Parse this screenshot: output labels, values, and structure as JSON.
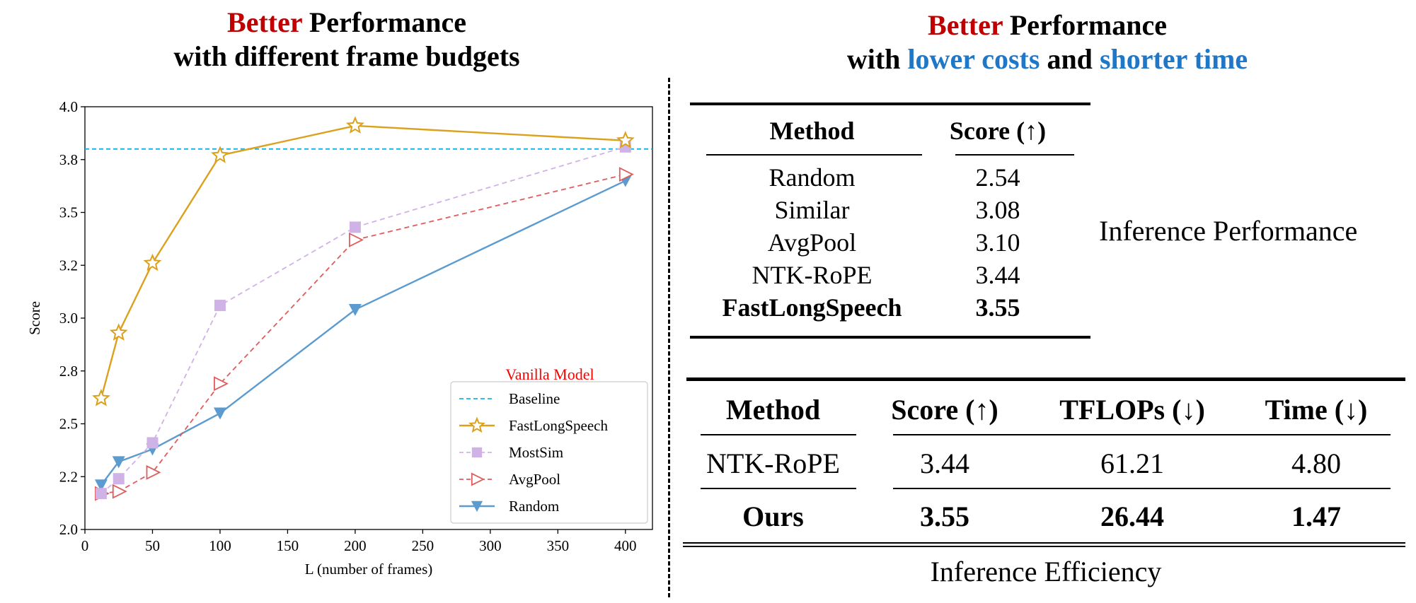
{
  "left_panel": {
    "heading_red": "Better",
    "heading_rest": " Performance",
    "heading_line2": "with different frame budgets"
  },
  "right_panel": {
    "heading_red": "Better",
    "heading_rest": " Performance",
    "heading_line2_pre": "with ",
    "heading_line2_blue1": "lower costs",
    "heading_line2_mid": " and ",
    "heading_line2_blue2": "shorter time"
  },
  "chart_data": {
    "type": "line",
    "xlabel": "L (number of frames)",
    "ylabel": "Score",
    "xlim": [
      0,
      420
    ],
    "ylim": [
      2.0,
      4.0
    ],
    "xticks": [
      0,
      50,
      100,
      150,
      200,
      250,
      300,
      350,
      400
    ],
    "yticks": [
      2.0,
      2.25,
      2.5,
      2.75,
      3.0,
      3.25,
      3.5,
      3.75,
      4.0
    ],
    "ytick_labels": [
      "2.0",
      "2.2",
      "2.5",
      "2.8",
      "3.0",
      "3.2",
      "3.5",
      "3.8",
      "4.0"
    ],
    "baseline": {
      "name": "Baseline",
      "value": 3.8,
      "color": "#1ab3e6"
    },
    "legend_title": "Vanilla Model",
    "legend_title_color": "#ff0000",
    "legend_position": "lower-right",
    "series": [
      {
        "name": "FastLongSpeech",
        "marker": "star",
        "dashed": false,
        "color": "#dba11c",
        "x": [
          12,
          25,
          50,
          100,
          200,
          400
        ],
        "values": [
          2.62,
          2.93,
          3.26,
          3.77,
          3.91,
          3.84
        ]
      },
      {
        "name": "MostSim",
        "marker": "square",
        "dashed": true,
        "color": "#cfb2e6",
        "x": [
          12,
          25,
          50,
          100,
          200,
          400
        ],
        "values": [
          2.17,
          2.24,
          2.41,
          3.06,
          3.43,
          3.81
        ]
      },
      {
        "name": "AvgPool",
        "marker": "triangle-right",
        "dashed": true,
        "color": "#e05c5c",
        "x": [
          12,
          25,
          50,
          100,
          200,
          400
        ],
        "values": [
          2.17,
          2.18,
          2.27,
          2.69,
          3.37,
          3.68
        ]
      },
      {
        "name": "Random",
        "marker": "triangle-down",
        "dashed": false,
        "color": "#5b9bcf",
        "x": [
          12,
          25,
          50,
          100,
          200,
          400
        ],
        "values": [
          2.21,
          2.32,
          2.38,
          2.55,
          3.04,
          3.65
        ]
      }
    ]
  },
  "table1": {
    "headers": [
      "Method",
      "Score (↑)"
    ],
    "rows": [
      [
        "Random",
        "2.54"
      ],
      [
        "Similar",
        "3.08"
      ],
      [
        "AvgPool",
        "3.10"
      ],
      [
        "NTK-RoPE",
        "3.44"
      ],
      [
        "FastLongSpeech",
        "3.55"
      ]
    ],
    "label": "Inference Performance"
  },
  "table2": {
    "headers": [
      "Method",
      "Score (↑)",
      "TFLOPs (↓)",
      "Time (↓)"
    ],
    "rows": [
      [
        "NTK-RoPE",
        "3.44",
        "61.21",
        "4.80"
      ],
      [
        "Ours",
        "3.55",
        "26.44",
        "1.47"
      ]
    ],
    "caption": "Inference Efficiency"
  }
}
